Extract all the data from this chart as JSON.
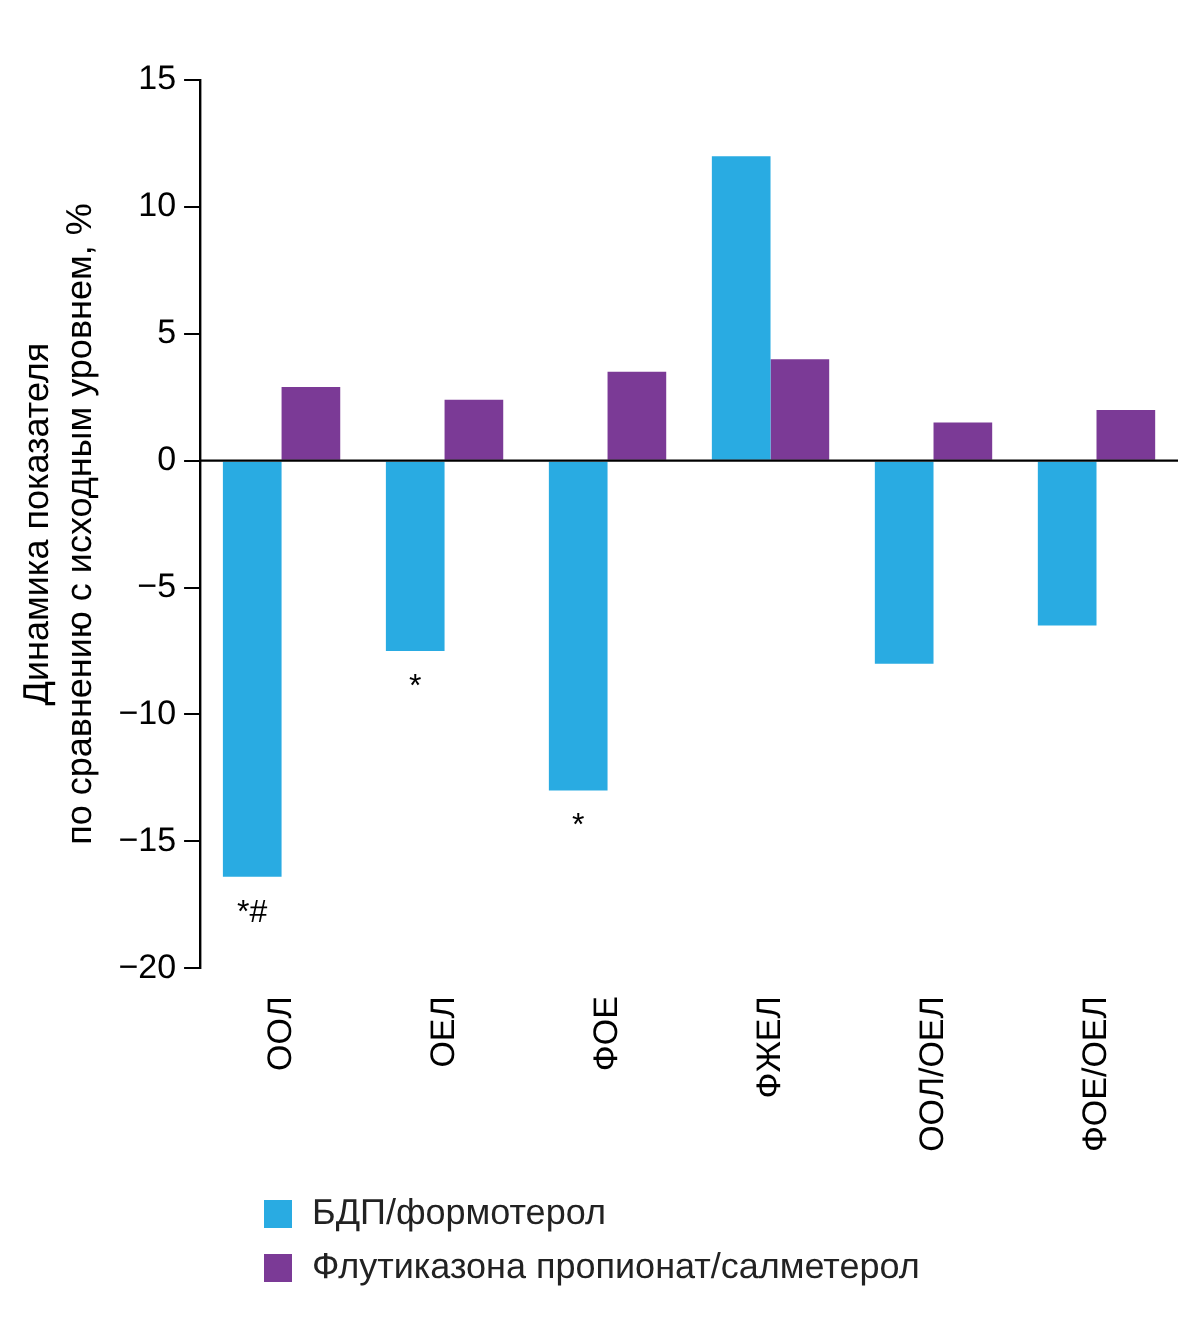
{
  "chart_data": {
    "type": "bar",
    "ylabel": "Динамика показателя\nпо сравнению с исходным уровнем, %",
    "categories": [
      "ООЛ",
      "ОЕЛ",
      "ФОЕ",
      "ФЖЕЛ",
      "ООЛ/ОЕЛ",
      "ФОЕ/ОЕЛ"
    ],
    "series": [
      {
        "name": "БДП/формотерол",
        "color": "#29abe2",
        "values": [
          -16.4,
          -7.5,
          -13.0,
          12.0,
          -8.0,
          -6.5
        ]
      },
      {
        "name": "Флутиказона пропионат/салметерол",
        "color": "#7b3a96",
        "values": [
          2.9,
          2.4,
          3.5,
          4.0,
          1.5,
          2.0
        ]
      }
    ],
    "ylim": [
      -20,
      15
    ],
    "yticks": [
      -20,
      -15,
      -10,
      -5,
      0,
      5,
      10,
      15
    ],
    "grid": false,
    "legend": "bottom",
    "ref_lines": [
      {
        "axis": "y",
        "value": 0
      }
    ],
    "annotations": [
      {
        "text": "*#",
        "x": "ООЛ",
        "y": -16.4
      },
      {
        "text": "*",
        "x": "ОЕЛ",
        "y": -7.5
      },
      {
        "text": "*",
        "x": "ФОЕ",
        "y": -13.0
      }
    ]
  }
}
